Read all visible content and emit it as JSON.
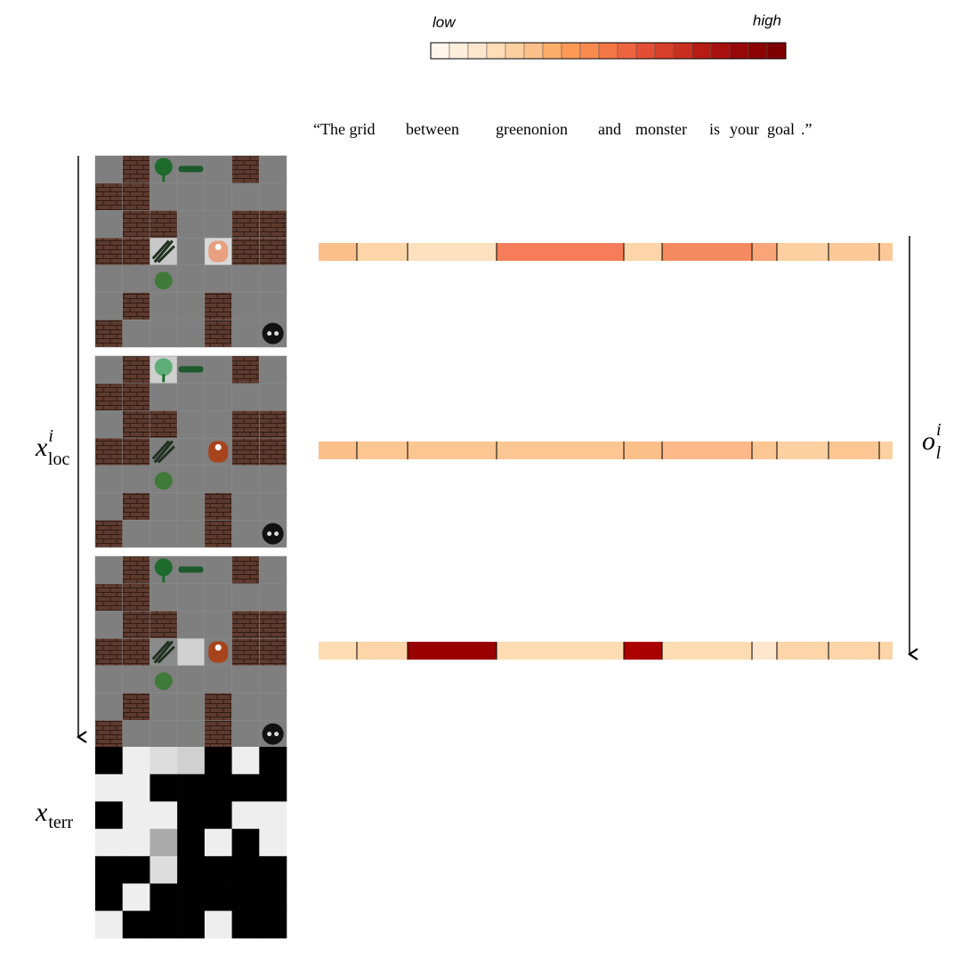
{
  "legend": {
    "low": "low",
    "high": "high"
  },
  "sentence": {
    "words": [
      "“The grid",
      "between",
      "greenonion",
      "and",
      "monster",
      "is",
      "your",
      "goal",
      ".”"
    ]
  },
  "labels": {
    "loc": {
      "base": "x",
      "sup": "i",
      "sub": "loc"
    },
    "attention": {
      "base": "o",
      "sup": "i",
      "sub": "l"
    },
    "terr": {
      "base": "x",
      "sub": "terr"
    }
  }
}
